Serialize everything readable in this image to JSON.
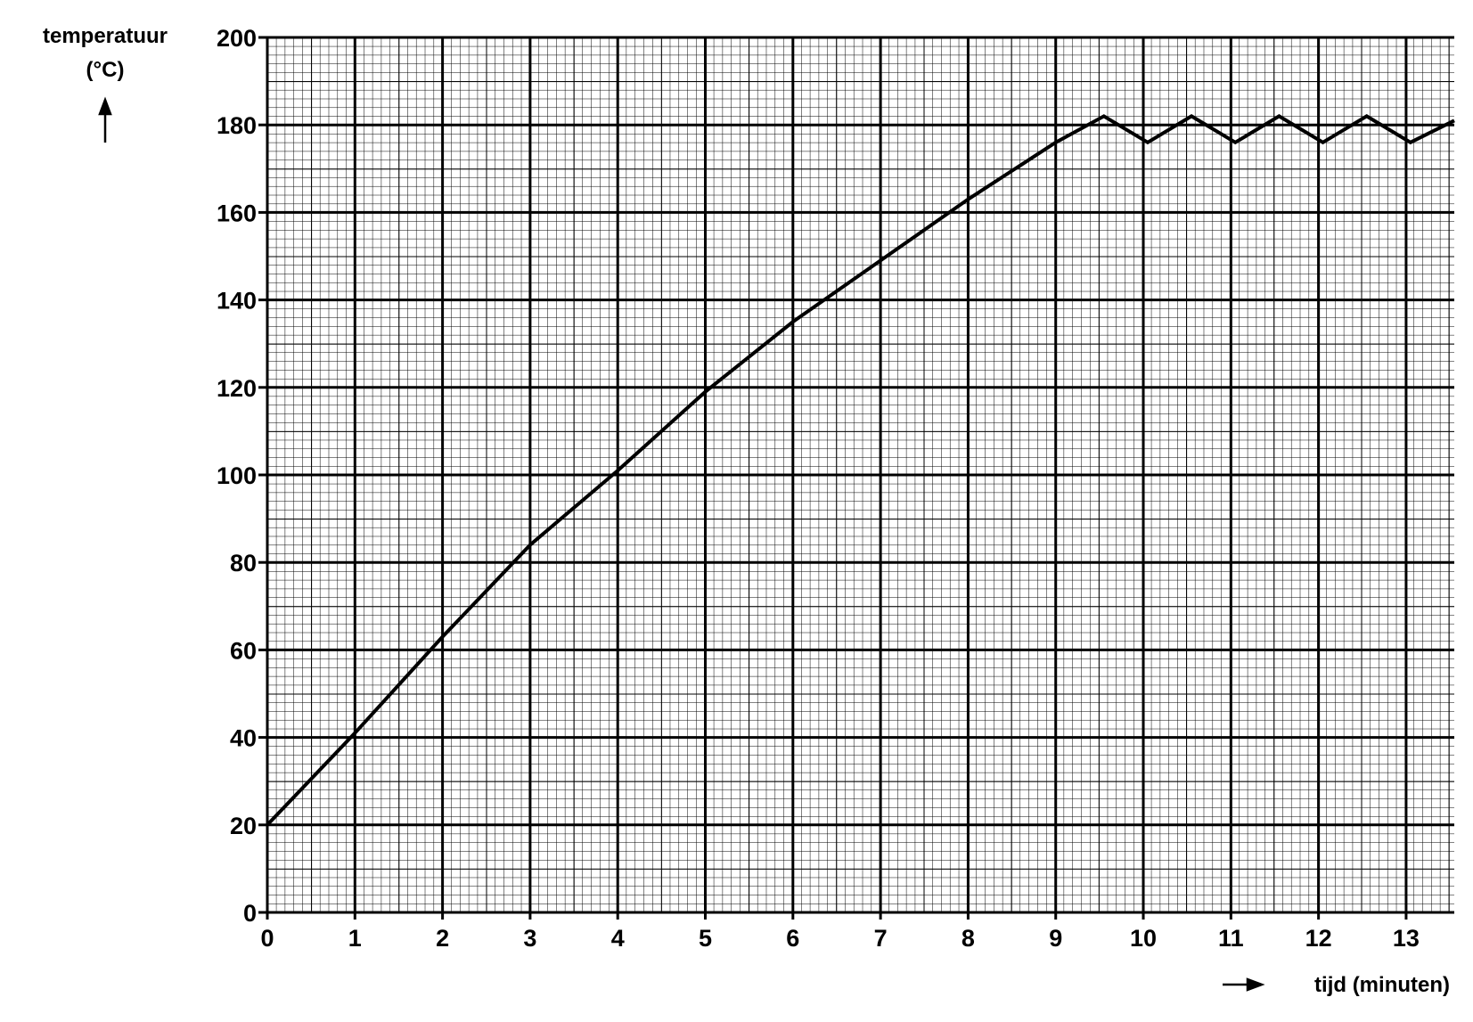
{
  "chart_data": {
    "type": "line",
    "ylabel": [
      "temperatuur",
      "(°C)"
    ],
    "xlabel": "tijd (minuten)",
    "x": [
      0,
      1,
      2,
      3,
      4,
      5,
      6,
      7,
      8,
      9,
      9.55,
      10.05,
      10.55,
      11.05,
      11.55,
      12.05,
      12.55,
      13.05,
      13.55
    ],
    "series": [
      {
        "color": "#000000",
        "values": [
          20,
          41,
          63,
          84,
          101,
          119,
          135,
          149,
          163,
          176,
          182,
          176,
          182,
          176,
          182,
          176,
          182,
          176,
          181
        ]
      }
    ],
    "xlim": [
      0,
      13.55
    ],
    "ylim": [
      0,
      200
    ],
    "xticks": [
      0,
      1,
      2,
      3,
      4,
      5,
      6,
      7,
      8,
      9,
      10,
      11,
      12,
      13
    ],
    "yticks": [
      0,
      20,
      40,
      60,
      80,
      100,
      120,
      140,
      160,
      180,
      200
    ],
    "grid": true
  }
}
